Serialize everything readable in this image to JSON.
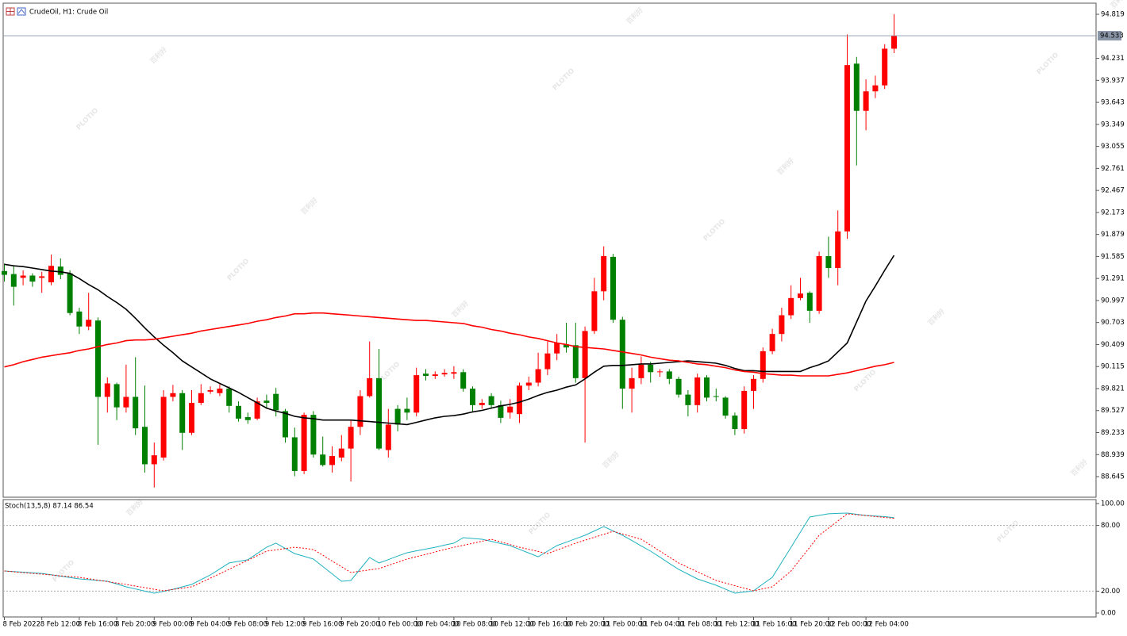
{
  "header": {
    "title": "CrudeOil, H1:  Crude Oil"
  },
  "watermark": {
    "brand": "PLOTIO",
    "text": "百利好"
  },
  "chart_data": [
    {
      "type": "candlestick",
      "categories": [
        "8 Feb 2022",
        null,
        null,
        null,
        "8 Feb 12:00",
        null,
        null,
        null,
        "8 Feb 16:00",
        null,
        null,
        null,
        "8 Feb 20:00",
        null,
        null,
        null,
        "9 Feb 00:00",
        null,
        null,
        null,
        "9 Feb 04:00",
        null,
        null,
        null,
        "9 Feb 08:00",
        null,
        null,
        null,
        "9 Feb 12:00",
        null,
        null,
        null,
        "9 Feb 16:00",
        null,
        null,
        null,
        "9 Feb 20:00",
        null,
        null,
        null,
        "10 Feb 00:00",
        null,
        null,
        null,
        "10 Feb 04:00",
        null,
        null,
        null,
        "10 Feb 08:00",
        null,
        null,
        null,
        "10 Feb 12:00",
        null,
        null,
        null,
        "10 Feb 16:00",
        null,
        null,
        null,
        "10 Feb 20:00",
        null,
        null,
        null,
        "11 Feb 00:00",
        null,
        null,
        null,
        "11 Feb 04:00",
        null,
        null,
        null,
        "11 Feb 08:00",
        null,
        null,
        null,
        "11 Feb 12:00",
        null,
        null,
        null,
        "11 Feb 16:00",
        null,
        null,
        null,
        "11 Feb 20:00",
        null,
        null,
        null,
        "12 Feb 00:00",
        null,
        null,
        null,
        "12 Feb 04:00",
        null,
        null,
        null
      ],
      "open": [
        91.39,
        91.35,
        91.3,
        91.33,
        91.3,
        91.24,
        91.45,
        91.36,
        90.85,
        90.65,
        90.73,
        89.71,
        89.88,
        89.57,
        89.71,
        89.31,
        88.81,
        88.9,
        89.71,
        89.76,
        89.23,
        89.63,
        89.78,
        89.76,
        89.82,
        89.59,
        89.44,
        89.42,
        89.66,
        89.75,
        89.52,
        89.17,
        88.72,
        89.47,
        88.94,
        88.8,
        88.9,
        89.02,
        89.31,
        89.72,
        89.96,
        89.0,
        89.55,
        89.55,
        89.5,
        90.02,
        89.99,
        90.01,
        90.02,
        90.04,
        89.82,
        89.6,
        89.72,
        89.6,
        89.5,
        89.48,
        89.86,
        89.9,
        90.08,
        90.29,
        90.41,
        90.4,
        89.96,
        90.59,
        91.12,
        91.58,
        90.74,
        89.82,
        89.96,
        90.14,
        90.04,
        90.05,
        89.95,
        89.74,
        89.6,
        89.97,
        89.72,
        89.7,
        89.46,
        89.28,
        89.79,
        89.95,
        90.32,
        90.55,
        90.8,
        91.03,
        91.1,
        90.86,
        91.59,
        91.43,
        91.92,
        94.16,
        93.53,
        93.79,
        93.87,
        94.36
      ],
      "high": [
        91.49,
        91.46,
        91.4,
        91.36,
        91.38,
        91.61,
        91.56,
        91.4,
        90.9,
        91.1,
        90.77,
        89.97,
        89.9,
        90.14,
        90.24,
        89.86,
        89.1,
        89.8,
        89.87,
        89.8,
        89.8,
        89.88,
        89.85,
        89.88,
        89.85,
        89.65,
        89.5,
        89.7,
        89.74,
        89.83,
        89.55,
        89.3,
        89.5,
        89.52,
        89.18,
        89.05,
        89.2,
        89.4,
        89.8,
        90.45,
        90.35,
        89.55,
        89.6,
        89.7,
        90.1,
        90.08,
        90.05,
        90.08,
        90.12,
        90.08,
        89.85,
        89.68,
        89.76,
        89.66,
        89.68,
        89.9,
        89.98,
        90.3,
        90.45,
        90.55,
        90.7,
        90.7,
        90.65,
        91.3,
        91.72,
        91.62,
        90.78,
        90.1,
        90.25,
        90.18,
        90.08,
        90.08,
        89.98,
        89.8,
        90.02,
        90.0,
        89.82,
        89.72,
        89.5,
        89.85,
        90.0,
        90.37,
        90.62,
        90.9,
        91.2,
        91.3,
        91.12,
        91.65,
        91.85,
        92.2,
        94.55,
        94.25,
        93.95,
        94.0,
        94.42,
        94.82
      ],
      "low": [
        91.25,
        90.93,
        91.2,
        91.18,
        91.1,
        91.2,
        91.28,
        90.8,
        90.55,
        90.6,
        89.07,
        89.5,
        89.4,
        89.5,
        89.2,
        88.7,
        88.5,
        88.86,
        89.65,
        89.0,
        89.2,
        89.6,
        89.75,
        89.72,
        89.5,
        89.38,
        89.35,
        89.4,
        89.55,
        89.45,
        89.1,
        88.65,
        88.68,
        88.9,
        88.78,
        88.7,
        88.85,
        88.58,
        89.2,
        89.7,
        89.0,
        88.9,
        89.25,
        89.4,
        89.45,
        89.93,
        89.95,
        89.98,
        89.95,
        89.78,
        89.5,
        89.55,
        89.55,
        89.36,
        89.42,
        89.36,
        89.8,
        89.85,
        90.0,
        90.2,
        90.3,
        89.9,
        89.1,
        90.55,
        91.0,
        90.7,
        89.55,
        89.5,
        89.88,
        89.9,
        89.98,
        89.88,
        89.7,
        89.45,
        89.5,
        89.65,
        89.65,
        89.42,
        89.2,
        89.22,
        89.55,
        89.9,
        90.28,
        90.45,
        90.75,
        91.0,
        90.7,
        90.82,
        91.3,
        91.2,
        91.82,
        92.8,
        93.27,
        93.7,
        93.82,
        94.3
      ],
      "close": [
        91.34,
        91.18,
        91.33,
        91.25,
        91.32,
        91.46,
        91.34,
        90.83,
        90.65,
        90.74,
        89.71,
        89.89,
        89.57,
        89.71,
        89.29,
        88.81,
        88.93,
        89.71,
        89.76,
        89.23,
        89.63,
        89.76,
        89.8,
        89.82,
        89.59,
        89.42,
        89.4,
        89.65,
        89.63,
        89.53,
        89.17,
        88.72,
        89.47,
        88.94,
        88.8,
        88.92,
        89.02,
        89.31,
        89.72,
        89.96,
        89.02,
        89.34,
        89.34,
        89.5,
        90.0,
        89.99,
        90.01,
        90.03,
        90.04,
        89.82,
        89.6,
        89.63,
        89.6,
        89.43,
        89.58,
        89.86,
        89.9,
        90.08,
        90.29,
        90.43,
        90.37,
        89.96,
        90.59,
        91.12,
        91.59,
        90.74,
        89.82,
        89.96,
        90.14,
        90.04,
        90.05,
        89.95,
        89.74,
        89.6,
        89.97,
        89.7,
        89.71,
        89.46,
        89.28,
        89.79,
        89.95,
        90.32,
        90.55,
        90.8,
        91.03,
        91.09,
        90.86,
        91.59,
        91.43,
        91.92,
        94.14,
        93.53,
        93.79,
        93.87,
        94.36,
        94.53
      ],
      "up_color": "#ff0000",
      "down_color": "#008000",
      "series": [
        {
          "color": "#000000",
          "values": [
            91.48,
            91.46,
            91.45,
            91.43,
            91.41,
            91.39,
            91.38,
            91.36,
            91.29,
            91.21,
            91.14,
            91.05,
            90.97,
            90.88,
            90.76,
            90.63,
            90.51,
            90.4,
            90.3,
            90.19,
            90.11,
            90.03,
            89.95,
            89.89,
            89.83,
            89.77,
            89.7,
            89.63,
            89.56,
            89.52,
            89.49,
            89.45,
            89.43,
            89.42,
            89.4,
            89.4,
            89.4,
            89.4,
            89.39,
            89.38,
            89.37,
            89.36,
            89.35,
            89.34,
            89.37,
            89.4,
            89.43,
            89.45,
            89.46,
            89.48,
            89.51,
            89.53,
            89.56,
            89.59,
            89.61,
            89.64,
            89.68,
            89.73,
            89.77,
            89.8,
            89.84,
            89.87,
            89.95,
            90.04,
            90.12,
            90.13,
            90.13,
            90.14,
            90.15,
            90.15,
            90.16,
            90.17,
            90.18,
            90.19,
            90.18,
            90.17,
            90.16,
            90.13,
            90.09,
            90.06,
            90.06,
            90.05,
            90.05,
            90.05,
            90.05,
            90.05,
            90.1,
            90.14,
            90.19,
            90.31,
            90.43,
            90.71,
            90.99,
            91.19,
            91.4,
            91.6
          ]
        },
        {
          "color": "#ff0000",
          "values": [
            90.11,
            90.14,
            90.18,
            90.21,
            90.24,
            90.26,
            90.28,
            90.3,
            90.33,
            90.35,
            90.38,
            90.41,
            90.43,
            90.46,
            90.47,
            90.47,
            90.48,
            90.5,
            90.52,
            90.54,
            90.56,
            90.59,
            90.61,
            90.63,
            90.65,
            90.67,
            90.69,
            90.72,
            90.74,
            90.77,
            90.79,
            90.82,
            90.82,
            90.83,
            90.83,
            90.82,
            90.81,
            90.8,
            90.79,
            90.78,
            90.77,
            90.76,
            90.75,
            90.74,
            90.73,
            90.73,
            90.72,
            90.71,
            90.7,
            90.69,
            90.66,
            90.64,
            90.61,
            90.59,
            90.56,
            90.54,
            90.51,
            90.49,
            90.46,
            90.43,
            90.41,
            90.38,
            90.37,
            90.36,
            90.35,
            90.33,
            90.31,
            90.29,
            90.27,
            90.24,
            90.22,
            90.2,
            90.19,
            90.17,
            90.15,
            90.14,
            90.12,
            90.1,
            90.07,
            90.05,
            90.04,
            90.02,
            90.01,
            90.0,
            90.0,
            89.99,
            89.99,
            89.99,
            89.99,
            90.01,
            90.03,
            90.06,
            90.09,
            90.12,
            90.14,
            90.17
          ]
        }
      ],
      "ylim": [
        88.37,
        94.957
      ],
      "yticks": [
        94.819,
        94.231,
        93.937,
        93.643,
        93.349,
        93.055,
        92.761,
        92.467,
        92.173,
        91.879,
        91.585,
        91.291,
        90.997,
        90.703,
        90.409,
        90.115,
        89.821,
        89.527,
        89.233,
        88.939,
        88.645
      ],
      "last_price": 94.533,
      "grid": false
    },
    {
      "type": "line",
      "label": "Stoch(13,5,8) 87.14 86.54",
      "series": [
        {
          "color": "#20b2c0",
          "values": [
            38.4,
            37.8,
            37.3,
            36.7,
            36.2,
            35.0,
            33.7,
            32.5,
            31.2,
            30.5,
            29.7,
            29.0,
            26.5,
            23.9,
            22.0,
            20.0,
            18.1,
            19.9,
            21.7,
            23.9,
            26.1,
            30.5,
            34.8,
            40.3,
            45.7,
            47.2,
            48.6,
            54.4,
            60.1,
            63.8,
            59.0,
            54.3,
            51.8,
            49.3,
            42.5,
            35.8,
            29.0,
            29.7,
            40.2,
            50.7,
            45.7,
            48.8,
            52.0,
            55.1,
            56.8,
            58.4,
            60.1,
            62.0,
            63.8,
            68.8,
            68.1,
            67.4,
            65.5,
            63.5,
            61.6,
            58.2,
            54.8,
            51.4,
            56.5,
            61.6,
            64.7,
            67.9,
            71.0,
            75.0,
            79.0,
            75.0,
            71.0,
            66.2,
            61.3,
            56.5,
            51.0,
            45.4,
            39.9,
            35.5,
            31.2,
            28.3,
            25.4,
            21.8,
            18.1,
            19.2,
            20.3,
            26.5,
            32.6,
            46.4,
            60.1,
            73.9,
            87.7,
            89.2,
            90.6,
            91.0,
            91.3,
            90.2,
            89.1,
            88.6,
            88.0,
            87.14
          ]
        },
        {
          "color": "#ff0000",
          "dashed": true,
          "values": [
            38.4,
            37.7,
            36.9,
            36.2,
            35.5,
            34.8,
            34.0,
            33.3,
            32.6,
            31.3,
            30.0,
            28.7,
            27.4,
            26.1,
            24.6,
            23.2,
            21.7,
            20.3,
            21.5,
            22.7,
            23.9,
            27.9,
            31.9,
            35.9,
            39.9,
            44.1,
            48.2,
            52.4,
            56.5,
            57.7,
            58.9,
            60.1,
            59.1,
            58.0,
            52.8,
            47.5,
            42.3,
            37.0,
            38.2,
            39.4,
            40.6,
            43.5,
            46.4,
            49.3,
            51.5,
            53.5,
            55.8,
            58.0,
            60.1,
            61.9,
            63.7,
            65.6,
            67.4,
            65.0,
            62.5,
            60.1,
            58.2,
            56.2,
            54.3,
            57.5,
            60.6,
            63.8,
            66.5,
            69.2,
            71.9,
            74.6,
            72.2,
            69.8,
            67.4,
            62.0,
            56.6,
            51.1,
            45.7,
            41.7,
            37.7,
            33.7,
            29.7,
            27.4,
            25.0,
            22.7,
            20.3,
            22.1,
            23.9,
            31.2,
            38.4,
            49.3,
            60.1,
            71.0,
            77.5,
            84.1,
            90.6,
            89.8,
            89.0,
            88.1,
            87.3,
            86.54
          ]
        }
      ],
      "ylim": [
        -3.6,
        103.6
      ],
      "yticks": [
        {
          "value": 100,
          "label": "100.00"
        },
        {
          "value": 80,
          "label": "80.00"
        },
        {
          "value": 20,
          "label": "20.00"
        },
        {
          "value": 0,
          "label": "0.00"
        }
      ],
      "levels": [
        80,
        20
      ]
    }
  ]
}
